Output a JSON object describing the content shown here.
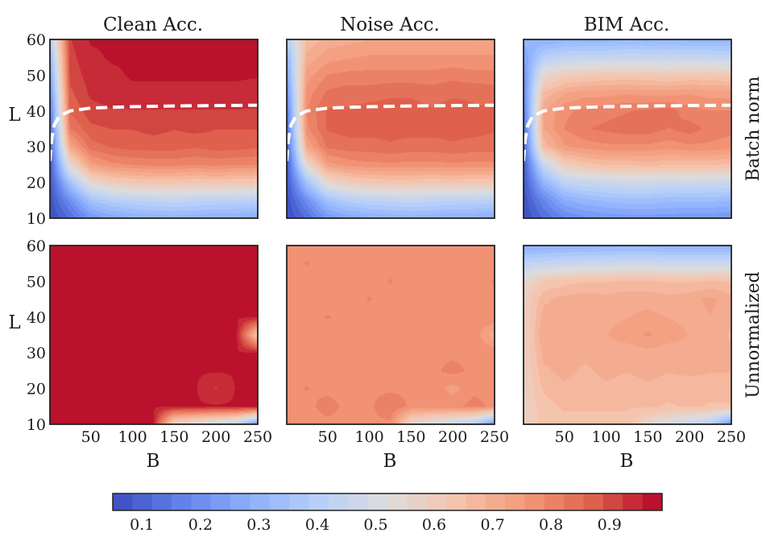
{
  "chart_data": {
    "type": "heatmap",
    "colormap": "coolwarm",
    "columns": [
      "Clean Acc.",
      "Noise Acc.",
      "BIM Acc."
    ],
    "rows": [
      "Batch norm",
      "Unnormalized"
    ],
    "xlabel": "B",
    "ylabel": "L",
    "xlim": [
      1,
      250
    ],
    "ylim": [
      10,
      60
    ],
    "xticks": [
      50,
      100,
      150,
      200,
      250
    ],
    "yticks": [
      10,
      20,
      30,
      40,
      50,
      60
    ],
    "x_grid": [
      1,
      25,
      50,
      75,
      100,
      125,
      150,
      175,
      200,
      225,
      250
    ],
    "y_grid": [
      10,
      15,
      20,
      25,
      30,
      35,
      40,
      45,
      50,
      55,
      60
    ],
    "colorbar": {
      "ticks": [
        "0.1",
        "0.2",
        "0.3",
        "0.4",
        "0.5",
        "0.6",
        "0.7",
        "0.8",
        "0.9"
      ],
      "range": [
        0.05,
        0.99
      ],
      "levels": 28
    },
    "boundary_curve": {
      "style": "white dashed",
      "rows_applied": [
        "Batch norm"
      ],
      "points": [
        [
          1,
          26
        ],
        [
          3,
          32
        ],
        [
          6,
          36
        ],
        [
          12,
          38.5
        ],
        [
          25,
          40
        ],
        [
          50,
          40.8
        ],
        [
          100,
          41.2
        ],
        [
          150,
          41.4
        ],
        [
          200,
          41.5
        ],
        [
          250,
          41.6
        ]
      ]
    },
    "panels": [
      {
        "row": "Batch norm",
        "column": "Clean Acc.",
        "values": [
          [
            0.4,
            0.92,
            0.96,
            0.96,
            0.97,
            0.97,
            0.97,
            0.97,
            0.97,
            0.97,
            0.97
          ],
          [
            0.3,
            0.91,
            0.95,
            0.96,
            0.96,
            0.96,
            0.96,
            0.96,
            0.96,
            0.96,
            0.96
          ],
          [
            0.25,
            0.9,
            0.94,
            0.95,
            0.96,
            0.96,
            0.96,
            0.96,
            0.96,
            0.96,
            0.96
          ],
          [
            0.2,
            0.88,
            0.93,
            0.94,
            0.95,
            0.95,
            0.95,
            0.95,
            0.95,
            0.95,
            0.94
          ],
          [
            0.15,
            0.86,
            0.91,
            0.92,
            0.92,
            0.92,
            0.92,
            0.92,
            0.92,
            0.92,
            0.92
          ],
          [
            0.12,
            0.82,
            0.88,
            0.89,
            0.89,
            0.9,
            0.89,
            0.9,
            0.89,
            0.89,
            0.89
          ],
          [
            0.1,
            0.72,
            0.84,
            0.86,
            0.87,
            0.87,
            0.87,
            0.86,
            0.87,
            0.87,
            0.86
          ],
          [
            0.08,
            0.55,
            0.74,
            0.78,
            0.79,
            0.8,
            0.8,
            0.79,
            0.8,
            0.79,
            0.79
          ],
          [
            0.07,
            0.35,
            0.55,
            0.6,
            0.62,
            0.63,
            0.63,
            0.62,
            0.63,
            0.62,
            0.62
          ],
          [
            0.06,
            0.2,
            0.35,
            0.4,
            0.42,
            0.43,
            0.44,
            0.43,
            0.42,
            0.42,
            0.41
          ],
          [
            0.05,
            0.12,
            0.22,
            0.26,
            0.28,
            0.29,
            0.3,
            0.29,
            0.28,
            0.28,
            0.27
          ]
        ]
      },
      {
        "row": "Batch norm",
        "column": "Noise Acc.",
        "values": [
          [
            0.4,
            0.66,
            0.7,
            0.71,
            0.72,
            0.72,
            0.72,
            0.72,
            0.72,
            0.72,
            0.73
          ],
          [
            0.3,
            0.7,
            0.74,
            0.75,
            0.76,
            0.76,
            0.76,
            0.76,
            0.76,
            0.76,
            0.76
          ],
          [
            0.25,
            0.74,
            0.79,
            0.8,
            0.8,
            0.8,
            0.8,
            0.8,
            0.81,
            0.8,
            0.8
          ],
          [
            0.2,
            0.77,
            0.83,
            0.84,
            0.84,
            0.85,
            0.85,
            0.84,
            0.85,
            0.85,
            0.84
          ],
          [
            0.15,
            0.79,
            0.86,
            0.86,
            0.87,
            0.87,
            0.87,
            0.86,
            0.87,
            0.86,
            0.86
          ],
          [
            0.12,
            0.78,
            0.86,
            0.87,
            0.87,
            0.87,
            0.87,
            0.87,
            0.87,
            0.87,
            0.86
          ],
          [
            0.1,
            0.72,
            0.83,
            0.84,
            0.84,
            0.85,
            0.84,
            0.84,
            0.85,
            0.84,
            0.84
          ],
          [
            0.08,
            0.55,
            0.74,
            0.77,
            0.78,
            0.78,
            0.78,
            0.78,
            0.78,
            0.78,
            0.78
          ],
          [
            0.07,
            0.35,
            0.55,
            0.6,
            0.62,
            0.63,
            0.63,
            0.62,
            0.63,
            0.62,
            0.62
          ],
          [
            0.06,
            0.2,
            0.35,
            0.4,
            0.42,
            0.43,
            0.44,
            0.43,
            0.42,
            0.42,
            0.41
          ],
          [
            0.05,
            0.12,
            0.22,
            0.26,
            0.28,
            0.29,
            0.3,
            0.29,
            0.28,
            0.28,
            0.27
          ]
        ]
      },
      {
        "row": "Batch norm",
        "column": "BIM Acc.",
        "values": [
          [
            0.3,
            0.28,
            0.3,
            0.3,
            0.3,
            0.31,
            0.3,
            0.31,
            0.3,
            0.3,
            0.3
          ],
          [
            0.25,
            0.4,
            0.43,
            0.44,
            0.44,
            0.45,
            0.45,
            0.44,
            0.45,
            0.44,
            0.44
          ],
          [
            0.2,
            0.55,
            0.6,
            0.61,
            0.62,
            0.62,
            0.62,
            0.61,
            0.62,
            0.62,
            0.61
          ],
          [
            0.18,
            0.66,
            0.72,
            0.74,
            0.74,
            0.75,
            0.74,
            0.74,
            0.75,
            0.74,
            0.74
          ],
          [
            0.15,
            0.72,
            0.78,
            0.8,
            0.81,
            0.82,
            0.83,
            0.84,
            0.8,
            0.79,
            0.79
          ],
          [
            0.12,
            0.72,
            0.79,
            0.82,
            0.83,
            0.84,
            0.84,
            0.82,
            0.84,
            0.81,
            0.8
          ],
          [
            0.1,
            0.66,
            0.75,
            0.77,
            0.78,
            0.78,
            0.78,
            0.77,
            0.78,
            0.78,
            0.77
          ],
          [
            0.08,
            0.45,
            0.6,
            0.64,
            0.66,
            0.66,
            0.67,
            0.66,
            0.66,
            0.66,
            0.65
          ],
          [
            0.07,
            0.3,
            0.42,
            0.45,
            0.46,
            0.47,
            0.47,
            0.46,
            0.47,
            0.46,
            0.46
          ],
          [
            0.06,
            0.18,
            0.28,
            0.31,
            0.33,
            0.34,
            0.34,
            0.33,
            0.33,
            0.33,
            0.32
          ],
          [
            0.05,
            0.12,
            0.18,
            0.21,
            0.22,
            0.23,
            0.23,
            0.23,
            0.22,
            0.22,
            0.22
          ]
        ]
      },
      {
        "row": "Unnormalized",
        "column": "Clean Acc.",
        "values": [
          [
            0.96,
            0.96,
            0.96,
            0.96,
            0.96,
            0.96,
            0.96,
            0.96,
            0.96,
            0.96,
            0.96
          ],
          [
            0.96,
            0.96,
            0.96,
            0.96,
            0.96,
            0.96,
            0.96,
            0.96,
            0.96,
            0.96,
            0.96
          ],
          [
            0.96,
            0.96,
            0.96,
            0.96,
            0.96,
            0.96,
            0.96,
            0.96,
            0.96,
            0.96,
            0.96
          ],
          [
            0.96,
            0.96,
            0.96,
            0.96,
            0.96,
            0.96,
            0.96,
            0.96,
            0.96,
            0.96,
            0.96
          ],
          [
            0.96,
            0.96,
            0.96,
            0.96,
            0.96,
            0.96,
            0.96,
            0.96,
            0.96,
            0.96,
            0.96
          ],
          [
            0.96,
            0.96,
            0.96,
            0.96,
            0.96,
            0.96,
            0.96,
            0.96,
            0.96,
            0.96,
            0.62
          ],
          [
            0.96,
            0.96,
            0.96,
            0.96,
            0.96,
            0.96,
            0.96,
            0.96,
            0.96,
            0.96,
            0.96
          ],
          [
            0.96,
            0.96,
            0.96,
            0.96,
            0.96,
            0.96,
            0.96,
            0.96,
            0.96,
            0.96,
            0.96
          ],
          [
            0.96,
            0.96,
            0.96,
            0.96,
            0.96,
            0.96,
            0.96,
            0.96,
            0.92,
            0.96,
            0.96
          ],
          [
            0.96,
            0.96,
            0.96,
            0.96,
            0.96,
            0.96,
            0.96,
            0.96,
            0.96,
            0.96,
            0.96
          ],
          [
            0.96,
            0.96,
            0.96,
            0.96,
            0.96,
            0.96,
            0.55,
            0.5,
            0.45,
            0.4,
            0.2
          ]
        ]
      },
      {
        "row": "Unnormalized",
        "column": "Noise Acc.",
        "values": [
          [
            0.78,
            0.78,
            0.78,
            0.78,
            0.78,
            0.78,
            0.78,
            0.78,
            0.78,
            0.78,
            0.78
          ],
          [
            0.78,
            0.79,
            0.78,
            0.78,
            0.78,
            0.78,
            0.78,
            0.78,
            0.78,
            0.78,
            0.78
          ],
          [
            0.78,
            0.78,
            0.78,
            0.78,
            0.78,
            0.79,
            0.78,
            0.78,
            0.78,
            0.78,
            0.79
          ],
          [
            0.78,
            0.78,
            0.78,
            0.78,
            0.79,
            0.78,
            0.78,
            0.78,
            0.78,
            0.78,
            0.78
          ],
          [
            0.78,
            0.78,
            0.79,
            0.78,
            0.78,
            0.78,
            0.78,
            0.78,
            0.78,
            0.78,
            0.78
          ],
          [
            0.78,
            0.78,
            0.78,
            0.78,
            0.78,
            0.78,
            0.78,
            0.78,
            0.78,
            0.78,
            0.7
          ],
          [
            0.78,
            0.78,
            0.78,
            0.78,
            0.78,
            0.78,
            0.78,
            0.78,
            0.78,
            0.78,
            0.78
          ],
          [
            0.78,
            0.78,
            0.78,
            0.78,
            0.78,
            0.78,
            0.78,
            0.78,
            0.8,
            0.78,
            0.78
          ],
          [
            0.78,
            0.79,
            0.78,
            0.78,
            0.78,
            0.78,
            0.78,
            0.78,
            0.74,
            0.78,
            0.78
          ],
          [
            0.78,
            0.78,
            0.8,
            0.78,
            0.78,
            0.82,
            0.78,
            0.78,
            0.78,
            0.8,
            0.78
          ],
          [
            0.78,
            0.78,
            0.78,
            0.78,
            0.78,
            0.78,
            0.55,
            0.5,
            0.45,
            0.4,
            0.2
          ]
        ]
      },
      {
        "row": "Unnormalized",
        "column": "BIM Acc.",
        "values": [
          [
            0.28,
            0.28,
            0.29,
            0.29,
            0.3,
            0.3,
            0.3,
            0.29,
            0.29,
            0.29,
            0.29
          ],
          [
            0.42,
            0.44,
            0.45,
            0.46,
            0.46,
            0.47,
            0.47,
            0.46,
            0.46,
            0.46,
            0.46
          ],
          [
            0.55,
            0.62,
            0.64,
            0.65,
            0.65,
            0.66,
            0.66,
            0.65,
            0.65,
            0.66,
            0.65
          ],
          [
            0.58,
            0.68,
            0.7,
            0.71,
            0.7,
            0.71,
            0.71,
            0.7,
            0.71,
            0.73,
            0.7
          ],
          [
            0.58,
            0.7,
            0.71,
            0.72,
            0.71,
            0.72,
            0.73,
            0.72,
            0.71,
            0.72,
            0.71
          ],
          [
            0.58,
            0.72,
            0.72,
            0.72,
            0.72,
            0.74,
            0.76,
            0.74,
            0.72,
            0.72,
            0.68
          ],
          [
            0.58,
            0.7,
            0.7,
            0.7,
            0.71,
            0.7,
            0.71,
            0.7,
            0.71,
            0.7,
            0.7
          ],
          [
            0.58,
            0.68,
            0.7,
            0.68,
            0.7,
            0.69,
            0.7,
            0.69,
            0.7,
            0.69,
            0.69
          ],
          [
            0.58,
            0.66,
            0.68,
            0.66,
            0.68,
            0.67,
            0.68,
            0.67,
            0.66,
            0.67,
            0.67
          ],
          [
            0.58,
            0.64,
            0.66,
            0.66,
            0.66,
            0.66,
            0.66,
            0.65,
            0.66,
            0.65,
            0.65
          ],
          [
            0.58,
            0.64,
            0.64,
            0.64,
            0.64,
            0.64,
            0.55,
            0.5,
            0.45,
            0.4,
            0.2
          ]
        ]
      }
    ]
  }
}
